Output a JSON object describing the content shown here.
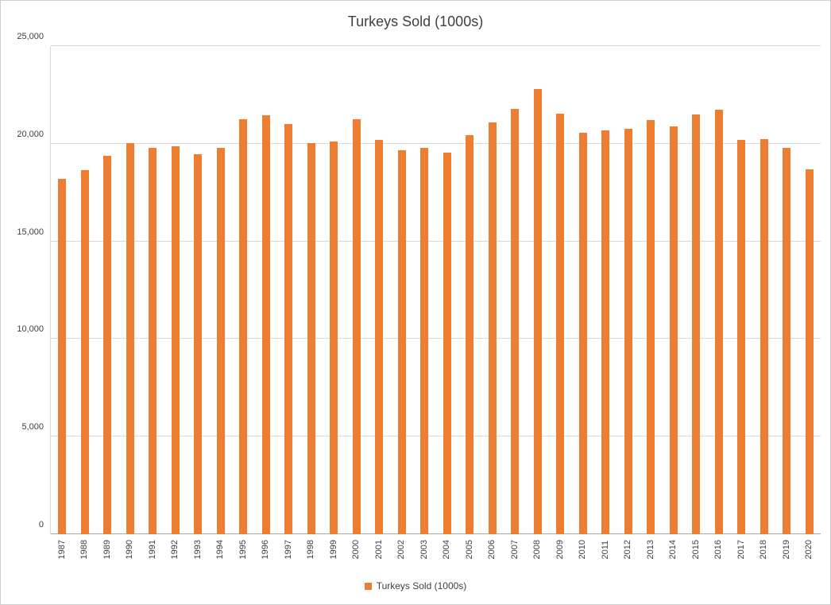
{
  "chart_data": {
    "type": "bar",
    "title": "Turkeys Sold (1000s)",
    "legend": "Turkeys Sold (1000s)",
    "legend_position": "bottom",
    "bar_color": "#ED7D31",
    "grid": true,
    "ylim": [
      0,
      25000
    ],
    "yticks": [
      {
        "value": 0,
        "label": "0"
      },
      {
        "value": 5000,
        "label": "5,000"
      },
      {
        "value": 10000,
        "label": "10,000"
      },
      {
        "value": 15000,
        "label": "15,000"
      },
      {
        "value": 20000,
        "label": "20,000"
      },
      {
        "value": 25000,
        "label": "25,000"
      }
    ],
    "xlabel": "",
    "ylabel": "",
    "categories": [
      "1987",
      "1988",
      "1989",
      "1990",
      "1991",
      "1992",
      "1993",
      "1994",
      "1995",
      "1996",
      "1997",
      "1998",
      "1999",
      "2000",
      "2001",
      "2002",
      "2003",
      "2004",
      "2005",
      "2006",
      "2007",
      "2008",
      "2009",
      "2010",
      "2011",
      "2012",
      "2013",
      "2014",
      "2015",
      "2016",
      "2017",
      "2018",
      "2019",
      "2020"
    ],
    "values": [
      18200,
      18650,
      19400,
      20050,
      19800,
      19850,
      19450,
      19800,
      21250,
      21450,
      21000,
      20050,
      20100,
      21250,
      20200,
      19650,
      19800,
      19550,
      20450,
      21100,
      21800,
      22800,
      21550,
      20550,
      20700,
      20750,
      21200,
      20900,
      21500,
      21750,
      20200,
      20250,
      19800,
      18700
    ]
  }
}
